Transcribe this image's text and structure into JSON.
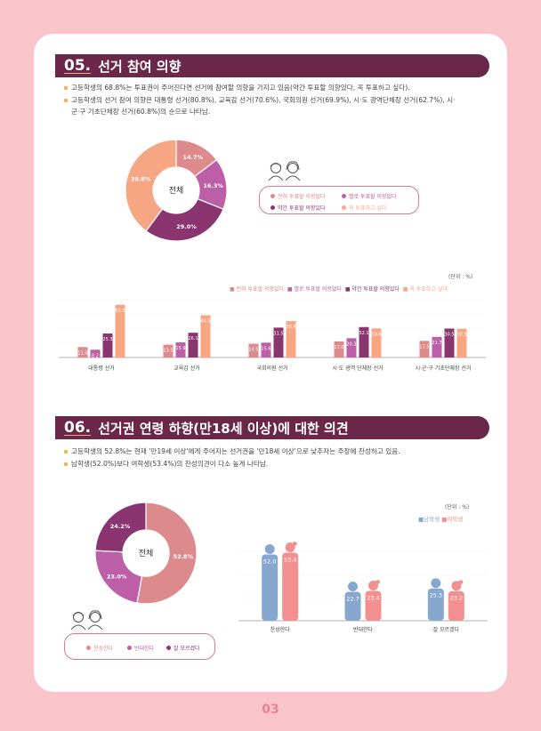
{
  "section5": {
    "number": "05.",
    "title": "선거 참여 의향",
    "bullets": [
      "고등학생의 68.8%는 투표권이 주어진다면 선거에 참여할 의향을 가지고 있음(약간 투표할 의향있다, 꼭 투표하고 싶다).",
      "고등학생의 선거 참여 의향은 대통령 선거(80.8%), 교육감 선거(70.6%), 국회의원 선거(69.9%), 시·도 광역단체장 선거(62.7%), 시·",
      "군·구 기초단체장 선거(60.8%)의 순으로 나타남."
    ],
    "donut_center": "전체",
    "legend": [
      "전혀 투표할 의향없다",
      "별로 투표할 의향없다",
      "약간 투표할 의향있다",
      "꼭 투표하고 싶다"
    ],
    "unit": "(단위 : %)"
  },
  "section6": {
    "number": "06.",
    "title": "선거권 연령 하향(만18세 이상)에 대한 의견",
    "bullets": [
      "고등학생의 52.8%는 현재 '만19세 이상'에게 주어지는 선거권을 '만18세 이상'으로 낮추자는 주장에 찬성하고 있음.",
      "남학생(52.0%)보다 여학생(53.4%)의 찬성의견이 다소 높게 나타남."
    ],
    "donut_center": "전체",
    "legend": [
      "찬성한다",
      "반대한다",
      "잘 모르겠다"
    ],
    "unit": "(단위 : %)",
    "gender_legend": [
      "남학생",
      "여학생"
    ]
  },
  "page_number": "03",
  "colors": {
    "c1": "#dd8a8c",
    "c2": "#bd5fa6",
    "c3": "#8a3570",
    "c4": "#f7a683",
    "male": "#86a8cf",
    "female": "#f1908e",
    "bar": "#6b2748",
    "bg": "#f9c5cb"
  },
  "chart_data": [
    {
      "type": "pie",
      "categories": [
        "전혀 투표할 의향없다",
        "별로 투표할 의향없다",
        "약간 투표할 의향있다",
        "꼭 투표하고 싶다"
      ],
      "values": [
        14.7,
        16.3,
        29.0,
        39.8
      ],
      "labels": [
        "14.7%",
        "16.3%",
        "29.0%",
        "39.8%"
      ]
    },
    {
      "type": "bar",
      "categories": [
        "대통령 선거",
        "교육감 선거",
        "국회의원 선거",
        "시·도 광역 단체장 선거",
        "시·군·구 기초단체장 선거"
      ],
      "series": [
        {
          "name": "전혀 투표할 의향없다",
          "values": [
            11.0,
            13.5,
            14.5,
            17.0,
            17.5
          ]
        },
        {
          "name": "별로 투표할 의향없다",
          "values": [
            8.2,
            15.9,
            15.6,
            20.3,
            21.7
          ]
        },
        {
          "name": "약간 투표할 의향있다",
          "values": [
            25.3,
            26.1,
            31.5,
            32.1,
            30.5
          ]
        },
        {
          "name": "꼭 투표하고 싶다",
          "values": [
            55.5,
            44.5,
            38.4,
            30.6,
            30.3
          ]
        }
      ],
      "value_labels": [
        [
          "11.0",
          "13.5",
          "14.5",
          "17.0",
          "17.5"
        ],
        [
          "8.2",
          "15.9",
          "15.6",
          "20.3",
          "21.7"
        ],
        [
          "25.3",
          "26.1",
          "31.5",
          "32.1",
          "30.5"
        ],
        [
          "55.5",
          "44.5",
          "38.4",
          "30.6",
          "30.3"
        ]
      ],
      "ylim": [
        0,
        60
      ]
    },
    {
      "type": "pie",
      "categories": [
        "찬성한다",
        "반대한다",
        "잘 모르겠다"
      ],
      "values": [
        52.8,
        23.0,
        24.2
      ],
      "labels": [
        "52.8%",
        "23.0%",
        "24.2%"
      ]
    },
    {
      "type": "bar",
      "categories": [
        "찬성한다",
        "반대한다",
        "잘 모르겠다"
      ],
      "series": [
        {
          "name": "남학생",
          "values": [
            52.0,
            22.7,
            25.3
          ]
        },
        {
          "name": "여학생",
          "values": [
            53.4,
            23.4,
            23.2
          ]
        }
      ],
      "value_labels": [
        [
          "52.0",
          "22.7",
          "25.3"
        ],
        [
          "53.4",
          "23.4",
          "23.2"
        ]
      ],
      "ylim": [
        0,
        60
      ]
    }
  ]
}
